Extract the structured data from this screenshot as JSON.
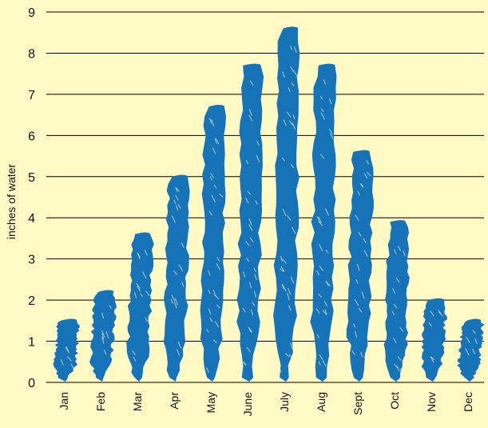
{
  "colors": {
    "background": "#FFF9C4",
    "bar": "#1673B8",
    "grid": "#000000",
    "text": "#111111"
  },
  "chart_data": {
    "type": "bar",
    "title": "",
    "xlabel": "",
    "ylabel": "inches of water",
    "categories": [
      "Jan",
      "Feb",
      "Mar",
      "Apr",
      "May",
      "June",
      "July",
      "Aug",
      "Sept",
      "Oct",
      "Nov",
      "Dec"
    ],
    "values": [
      1.5,
      2.2,
      3.6,
      5.0,
      6.7,
      7.7,
      8.6,
      7.7,
      5.6,
      3.9,
      2.0,
      1.5
    ],
    "ylim": [
      0,
      9
    ],
    "yticks": [
      0,
      1,
      2,
      3,
      4,
      5,
      6,
      7,
      8,
      9
    ],
    "grid": true,
    "legend": "none",
    "bar_style": "brush-stroke"
  }
}
